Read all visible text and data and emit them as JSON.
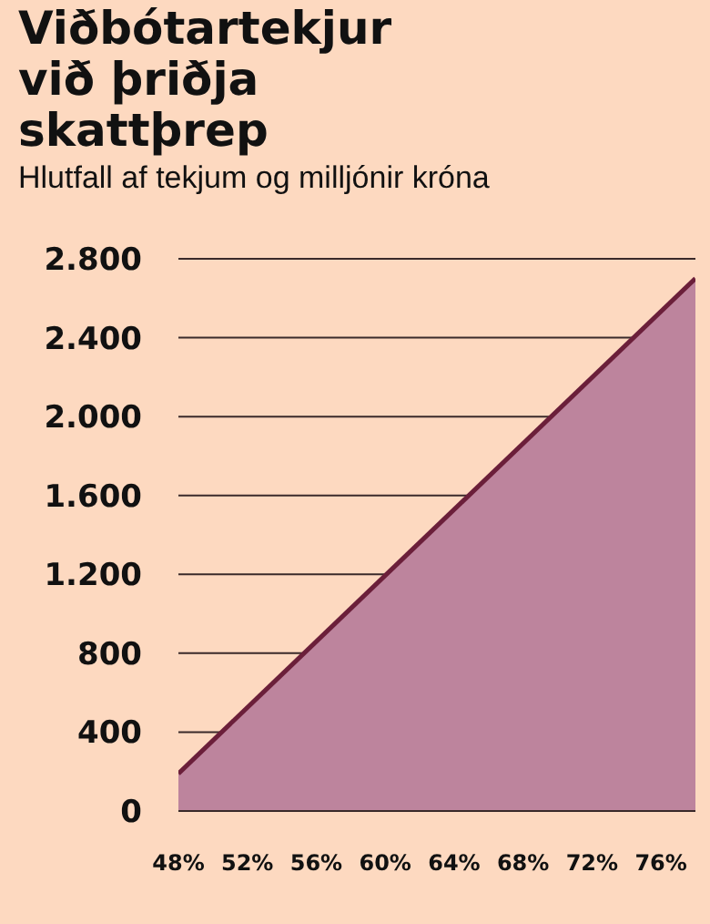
{
  "chart_data": {
    "type": "area",
    "title": "Viðbótartekjur við þriðja skattþrep",
    "subtitle": "Hlutfall af tekjum og milljónir króna",
    "x": [
      48,
      78
    ],
    "series": [
      {
        "color": "#bd849d",
        "values": [
          190,
          2700
        ]
      }
    ],
    "xlim": [
      48,
      78
    ],
    "xticks": [
      {
        "value": 48,
        "label": "48%"
      },
      {
        "value": 52,
        "label": "52%"
      },
      {
        "value": 56,
        "label": "56%"
      },
      {
        "value": 60,
        "label": "60%"
      },
      {
        "value": 64,
        "label": "64%"
      },
      {
        "value": 68,
        "label": "68%"
      },
      {
        "value": 72,
        "label": "72%"
      },
      {
        "value": 76,
        "label": "76%"
      }
    ],
    "ylim": [
      0,
      2800
    ],
    "yticks": [
      0,
      {
        "value": 400,
        "label": "400"
      },
      {
        "value": 800,
        "label": "800"
      },
      {
        "value": 1200,
        "label": "1.200"
      },
      {
        "value": 1600,
        "label": "1.600"
      },
      {
        "value": 2000,
        "label": "2.000"
      },
      {
        "value": 2400,
        "label": "2.400"
      },
      {
        "value": 2800,
        "label": "2.800"
      }
    ],
    "grid": "y",
    "legend": false
  }
}
